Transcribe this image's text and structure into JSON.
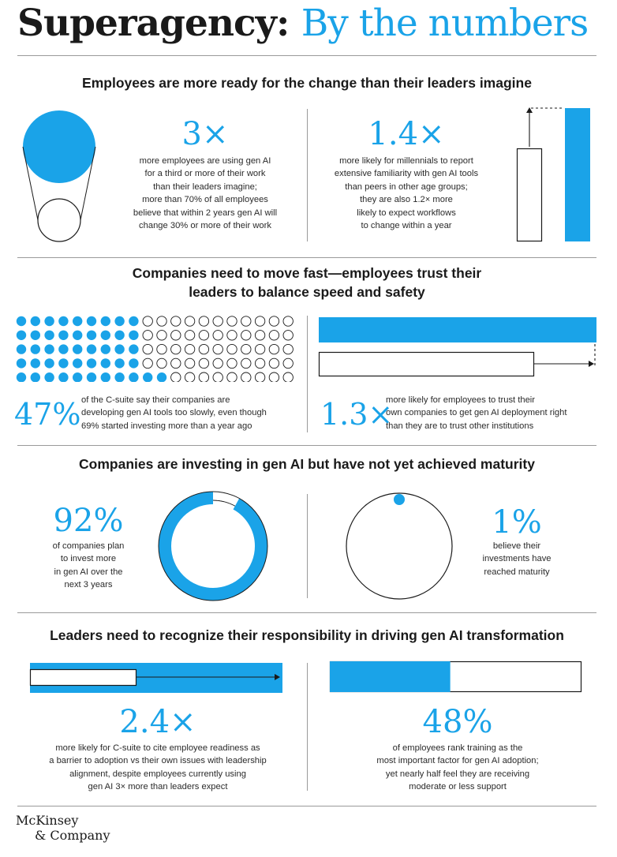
{
  "header": {
    "title_main": "Superagency:",
    "title_accent": "By the numbers"
  },
  "sections": [
    {
      "heading": "Employees are more ready for the change than their leaders imagine",
      "stats": [
        {
          "value": "3×",
          "lines": [
            "more employees are using gen AI",
            "for a third or more of their work",
            "than their leaders imagine;",
            "more than 70% of all employees",
            "believe that within 2 years gen AI will",
            "change 30% or more of their work"
          ]
        },
        {
          "value": "1.4×",
          "lines": [
            "more likely for millennials to report",
            "extensive familiarity with gen AI tools",
            "than peers in other age groups;",
            "they are also 1.2× more",
            "likely to expect workflows",
            "to change within a year"
          ]
        }
      ]
    },
    {
      "heading_lines": [
        "Companies need to move fast—employees trust their",
        "leaders to balance speed and safety"
      ],
      "dot_grid": {
        "rows": 5,
        "cols": 20,
        "filled_fraction": 0.47,
        "filled_pattern": [
          9,
          9,
          9,
          9,
          11
        ]
      },
      "stats": [
        {
          "value": "47%",
          "lines": [
            "of the C-suite say their companies are",
            "developing gen AI tools too slowly, even though",
            "69% started investing more than a year ago"
          ]
        },
        {
          "value": "1.3×",
          "lines": [
            "more likely for employees to trust their",
            "own companies to get gen AI deployment right",
            "than they are to trust other institutions"
          ]
        }
      ]
    },
    {
      "heading": "Companies are investing in gen AI but have not yet achieved maturity",
      "stats": [
        {
          "value": "92%",
          "lines": [
            "of companies plan",
            "to invest more",
            "in gen AI over the",
            "next 3 years"
          ],
          "ring_fraction": 0.92
        },
        {
          "value": "1%",
          "lines": [
            "believe their",
            "investments have",
            "reached maturity"
          ],
          "ring_fraction": 0.01
        }
      ]
    },
    {
      "heading": "Leaders need to recognize their responsibility in driving gen AI transformation",
      "stats": [
        {
          "value": "2.4×",
          "lines": [
            "more likely for C-suite to cite employee readiness as",
            "a barrier to adoption vs their own issues with leadership",
            "alignment, despite employees currently using",
            "gen AI 3× more than leaders expect"
          ]
        },
        {
          "value": "48%",
          "lines": [
            "of employees rank training as the",
            "most important factor for gen AI adoption;",
            "yet nearly half feel they are receiving",
            "moderate or less support"
          ],
          "bar_fraction": 0.48
        }
      ]
    }
  ],
  "footer": {
    "logo_line1": "McKinsey",
    "logo_line2": "& Company"
  },
  "colors": {
    "accent": "#1aa3e8",
    "text": "#1a1a1a",
    "rule": "#9a9a9a"
  }
}
